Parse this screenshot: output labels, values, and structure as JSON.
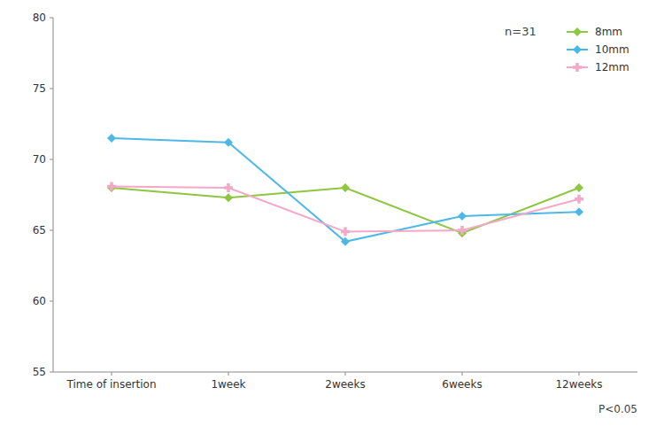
{
  "chart_data": {
    "type": "line",
    "categories": [
      "Time of insertion",
      "1week",
      "2weeks",
      "6weeks",
      "12weeks"
    ],
    "series": [
      {
        "name": "8mm",
        "color": "#8dc63f",
        "marker": "diamond",
        "values": [
          68.0,
          67.3,
          68.0,
          64.8,
          68.0
        ]
      },
      {
        "name": "10mm",
        "color": "#4db8e8",
        "marker": "diamond",
        "values": [
          71.5,
          71.2,
          64.2,
          66.0,
          66.3
        ]
      },
      {
        "name": "12mm",
        "color": "#f4a8c8",
        "marker": "plus",
        "values": [
          68.1,
          68.0,
          64.9,
          65.0,
          67.2
        ]
      }
    ],
    "ylim": [
      55,
      80
    ],
    "yticks": [
      55,
      60,
      65,
      70,
      75,
      80
    ],
    "annotations": [
      "n=31",
      "P<0.05"
    ],
    "legend": "upper right",
    "grid": false
  }
}
